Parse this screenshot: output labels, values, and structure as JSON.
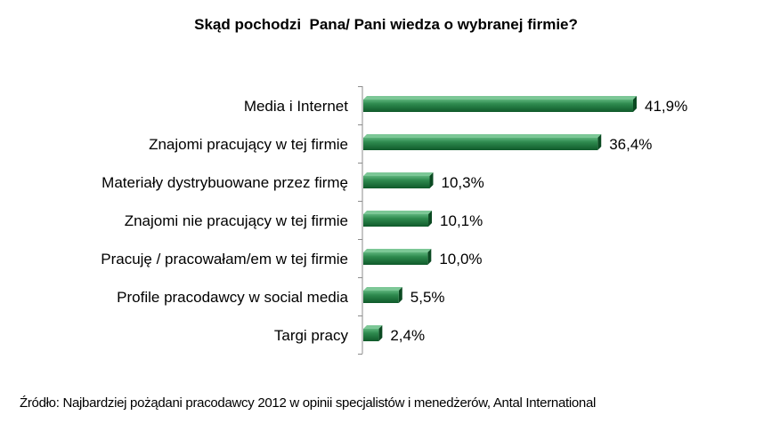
{
  "chart_data": {
    "type": "bar",
    "orientation": "horizontal",
    "title": "Skąd pochodzi  Pana/ Pani wiedza o wybranej firmie?",
    "categories": [
      "Media i Internet",
      "Znajomi pracujący w tej firmie",
      "Materiały dystrybuowane przez firmę",
      "Znajomi nie pracujący w tej firmie",
      "Pracuję / pracowałam/em w tej firmie",
      "Profile pracodawcy w social media",
      "Targi pracy"
    ],
    "values": [
      41.9,
      36.4,
      10.3,
      10.1,
      10.0,
      5.5,
      2.4
    ],
    "value_labels": [
      "41,9%",
      "36,4%",
      "10,3%",
      "10,1%",
      "10,0%",
      "5,5%",
      "2,4%"
    ],
    "bar_color": "#1f7a3f",
    "grid": false,
    "xlim": [
      0,
      45
    ]
  },
  "source_note": "Źródło: Najbardziej pożądani pracodawcy 2012 w opinii specjalistów i menedżerów, Antal International"
}
